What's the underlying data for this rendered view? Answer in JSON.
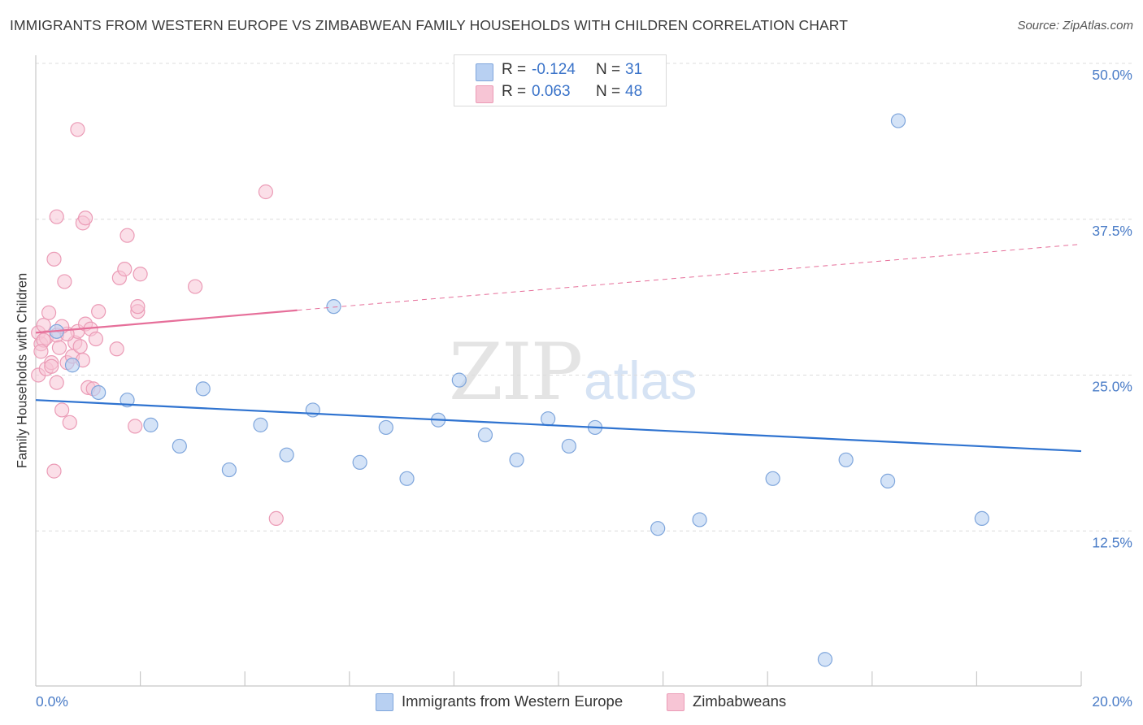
{
  "header": {
    "title": "IMMIGRANTS FROM WESTERN EUROPE VS ZIMBABWEAN FAMILY HOUSEHOLDS WITH CHILDREN CORRELATION CHART",
    "source": "Source: ZipAtlas.com"
  },
  "watermark": {
    "zip": "ZIP",
    "atlas": "atlas"
  },
  "legend": {
    "r_label": "R =",
    "n_label": "N =",
    "series1": {
      "r": "-0.124",
      "n": "31"
    },
    "series2": {
      "r": "0.063",
      "n": "48"
    }
  },
  "colors": {
    "blue_fill": "#b8d0f2",
    "blue_stroke": "#7fa6dc",
    "blue_line": "#2f73d0",
    "pink_fill": "#f7c5d5",
    "pink_stroke": "#eb9bb6",
    "pink_line": "#e66f9a",
    "grid": "#dcdcdc",
    "tick_text": "#4a7cc7"
  },
  "chart_data": {
    "type": "scatter",
    "title": "IMMIGRANTS FROM WESTERN EUROPE VS ZIMBABWEAN FAMILY HOUSEHOLDS WITH CHILDREN CORRELATION CHART",
    "xlabel": "",
    "ylabel": "Family Households with Children",
    "xlim": [
      0,
      20
    ],
    "ylim": [
      0,
      50
    ],
    "x_tick_labels": [
      "0.0%",
      "20.0%"
    ],
    "y_ticks": [
      {
        "value": 12.5,
        "label": "12.5%"
      },
      {
        "value": 25.0,
        "label": "25.0%"
      },
      {
        "value": 37.5,
        "label": "37.5%"
      },
      {
        "value": 50.0,
        "label": "50.0%"
      }
    ],
    "grid": true,
    "legend_position": "bottom-center",
    "series": [
      {
        "name": "Immigrants from Western Europe",
        "color": "blue",
        "points": [
          [
            0.4,
            28.5
          ],
          [
            0.7,
            25.8
          ],
          [
            1.2,
            23.6
          ],
          [
            1.75,
            23.0
          ],
          [
            2.2,
            21.0
          ],
          [
            2.75,
            19.3
          ],
          [
            3.2,
            23.9
          ],
          [
            3.7,
            17.4
          ],
          [
            4.3,
            21.0
          ],
          [
            4.8,
            18.6
          ],
          [
            5.3,
            22.2
          ],
          [
            5.7,
            30.5
          ],
          [
            6.2,
            18.0
          ],
          [
            6.7,
            20.8
          ],
          [
            7.1,
            16.7
          ],
          [
            7.7,
            21.4
          ],
          [
            8.1,
            24.6
          ],
          [
            8.6,
            20.2
          ],
          [
            9.2,
            18.2
          ],
          [
            9.8,
            21.5
          ],
          [
            10.2,
            19.3
          ],
          [
            10.7,
            20.8
          ],
          [
            11.8,
            50.1
          ],
          [
            11.9,
            12.7
          ],
          [
            12.7,
            13.4
          ],
          [
            14.1,
            16.7
          ],
          [
            15.1,
            2.2
          ],
          [
            15.5,
            18.2
          ],
          [
            16.3,
            16.5
          ],
          [
            16.5,
            45.4
          ],
          [
            18.1,
            13.5
          ]
        ],
        "trend": {
          "x": [
            0,
            20
          ],
          "y": [
            23.0,
            18.9
          ]
        }
      },
      {
        "name": "Zimbabweans",
        "color": "pink",
        "points": [
          [
            0.05,
            28.4
          ],
          [
            0.05,
            25.0
          ],
          [
            0.1,
            27.5
          ],
          [
            0.15,
            29.0
          ],
          [
            0.2,
            28.0
          ],
          [
            0.2,
            25.5
          ],
          [
            0.25,
            30.0
          ],
          [
            0.3,
            26.0
          ],
          [
            0.35,
            34.3
          ],
          [
            0.35,
            17.3
          ],
          [
            0.4,
            37.7
          ],
          [
            0.4,
            28.2
          ],
          [
            0.4,
            24.4
          ],
          [
            0.45,
            27.2
          ],
          [
            0.5,
            22.2
          ],
          [
            0.55,
            32.5
          ],
          [
            0.6,
            26.0
          ],
          [
            0.65,
            21.2
          ],
          [
            0.7,
            26.5
          ],
          [
            0.75,
            27.6
          ],
          [
            0.8,
            28.5
          ],
          [
            0.8,
            44.7
          ],
          [
            0.85,
            27.3
          ],
          [
            0.9,
            26.2
          ],
          [
            0.9,
            37.2
          ],
          [
            0.95,
            29.1
          ],
          [
            0.95,
            37.6
          ],
          [
            1.0,
            24.0
          ],
          [
            1.05,
            28.7
          ],
          [
            1.1,
            23.9
          ],
          [
            1.15,
            27.9
          ],
          [
            1.2,
            30.1
          ],
          [
            1.55,
            27.1
          ],
          [
            1.6,
            32.8
          ],
          [
            1.7,
            33.5
          ],
          [
            1.75,
            36.2
          ],
          [
            1.9,
            20.9
          ],
          [
            1.95,
            30.1
          ],
          [
            1.95,
            30.5
          ],
          [
            2.0,
            33.1
          ],
          [
            3.05,
            32.1
          ],
          [
            4.4,
            39.7
          ],
          [
            4.6,
            13.5
          ],
          [
            0.15,
            27.8
          ],
          [
            0.3,
            25.7
          ],
          [
            0.6,
            28.3
          ],
          [
            0.1,
            26.9
          ],
          [
            0.5,
            28.9
          ]
        ],
        "trend_solid": {
          "x": [
            0,
            5.0
          ],
          "y": [
            28.4,
            30.2
          ]
        },
        "trend_dashed": {
          "x": [
            5.0,
            20
          ],
          "y": [
            30.2,
            35.5
          ]
        }
      }
    ]
  }
}
